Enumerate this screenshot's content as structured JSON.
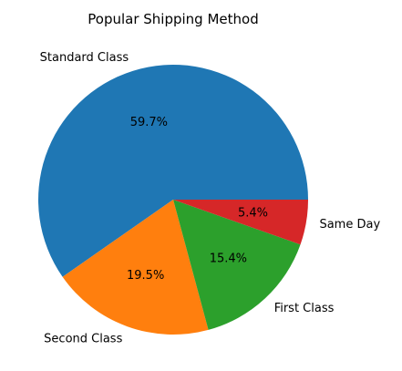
{
  "chart_data": {
    "type": "pie",
    "title": "Popular Shipping Method",
    "categories": [
      "Standard Class",
      "Second Class",
      "First Class",
      "Same Day"
    ],
    "values": [
      59.7,
      19.5,
      15.4,
      5.4
    ],
    "value_labels": [
      "59.7%",
      "19.5%",
      "15.4%",
      "5.4%"
    ],
    "colors": [
      "#1f77b4",
      "#ff7f0e",
      "#2ca02c",
      "#d62728"
    ],
    "start_angle_deg": 0,
    "direction": "counterclockwise",
    "legend": "none"
  }
}
